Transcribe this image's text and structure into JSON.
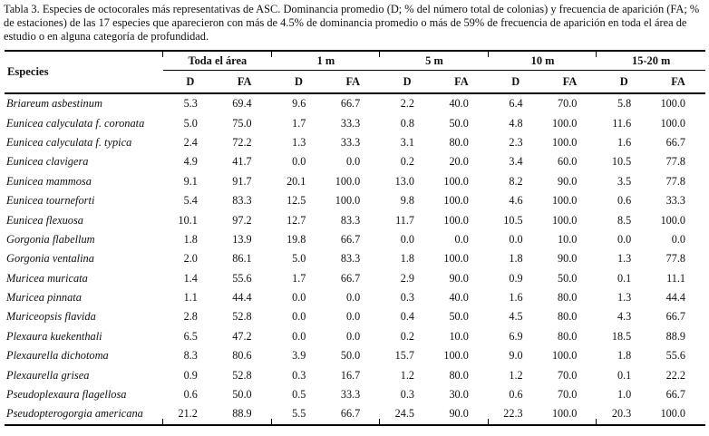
{
  "colors": {
    "text": "#111111",
    "rule": "#000000",
    "background": "#ffffff"
  },
  "caption": "Tabla 3. Especies de octocorales más representativas de ASC. Dominancia promedio (D; % del número total de colonias) y frecuencia de aparición (FA; % de estaciones) de las 17 especies que aparecieron con más de 4.5% de dominancia promedio o más de 59% de frecuencia de aparición en toda el área de estudio o en alguna categoría de profundidad.",
  "table": {
    "species_header": "Especies",
    "groups": [
      {
        "label": "Toda el área"
      },
      {
        "label": "1 m"
      },
      {
        "label": "5 m"
      },
      {
        "label": "10 m"
      },
      {
        "label": "15-20 m"
      }
    ],
    "sub_headers": [
      "D",
      "FA"
    ],
    "rows": [
      {
        "species": "Briareum asbestinum",
        "values": [
          "5.3",
          "69.4",
          "9.6",
          "66.7",
          "2.2",
          "40.0",
          "6.4",
          "70.0",
          "5.8",
          "100.0"
        ]
      },
      {
        "species": "Eunicea calyculata f. coronata",
        "values": [
          "5.0",
          "75.0",
          "1.7",
          "33.3",
          "0.8",
          "50.0",
          "4.8",
          "100.0",
          "11.6",
          "100.0"
        ]
      },
      {
        "species": "Eunicea calyculata f. typica",
        "values": [
          "2.4",
          "72.2",
          "1.3",
          "33.3",
          "3.1",
          "80.0",
          "2.3",
          "100.0",
          "1.6",
          "66.7"
        ]
      },
      {
        "species": "Eunicea clavigera",
        "values": [
          "4.9",
          "41.7",
          "0.0",
          "0.0",
          "0.2",
          "20.0",
          "3.4",
          "60.0",
          "10.5",
          "77.8"
        ]
      },
      {
        "species": "Eunicea mammosa",
        "values": [
          "9.1",
          "91.7",
          "20.1",
          "100.0",
          "13.0",
          "100.0",
          "8.2",
          "90.0",
          "3.5",
          "77.8"
        ]
      },
      {
        "species": "Eunicea tourneforti",
        "values": [
          "5.4",
          "83.3",
          "12.5",
          "100.0",
          "9.8",
          "100.0",
          "4.6",
          "100.0",
          "0.6",
          "33.3"
        ]
      },
      {
        "species": "Eunicea flexuosa",
        "values": [
          "10.1",
          "97.2",
          "12.7",
          "83.3",
          "11.7",
          "100.0",
          "10.5",
          "100.0",
          "8.5",
          "100.0"
        ]
      },
      {
        "species": "Gorgonia flabellum",
        "values": [
          "1.8",
          "13.9",
          "19.8",
          "66.7",
          "0.0",
          "0.0",
          "0.0",
          "10.0",
          "0.0",
          "0.0"
        ]
      },
      {
        "species": "Gorgonia ventalina",
        "values": [
          "2.0",
          "86.1",
          "5.0",
          "83.3",
          "1.8",
          "100.0",
          "1.8",
          "90.0",
          "1.3",
          "77.8"
        ]
      },
      {
        "species": "Muricea muricata",
        "values": [
          "1.4",
          "55.6",
          "1.7",
          "66.7",
          "2.9",
          "90.0",
          "0.9",
          "50.0",
          "0.1",
          "11.1"
        ]
      },
      {
        "species": "Muricea pinnata",
        "values": [
          "1.1",
          "44.4",
          "0.0",
          "0.0",
          "0.3",
          "40.0",
          "1.6",
          "80.0",
          "1.3",
          "44.4"
        ]
      },
      {
        "species": "Muriceopsis flavida",
        "values": [
          "2.8",
          "52.8",
          "0.0",
          "0.0",
          "0.4",
          "50.0",
          "4.5",
          "80.0",
          "4.3",
          "66.7"
        ]
      },
      {
        "species": "Plexaura kuekenthali",
        "values": [
          "6.5",
          "47.2",
          "0.0",
          "0.0",
          "0.2",
          "10.0",
          "6.9",
          "80.0",
          "18.5",
          "88.9"
        ]
      },
      {
        "species": "Plexaurella dichotoma",
        "values": [
          "8.3",
          "80.6",
          "3.9",
          "50.0",
          "15.7",
          "100.0",
          "9.0",
          "100.0",
          "1.8",
          "55.6"
        ]
      },
      {
        "species": "Plexaurella grisea",
        "values": [
          "0.9",
          "52.8",
          "0.3",
          "16.7",
          "1.2",
          "80.0",
          "1.2",
          "70.0",
          "0.1",
          "22.2"
        ]
      },
      {
        "species": "Pseudoplexaura flagellosa",
        "values": [
          "0.6",
          "50.0",
          "0.5",
          "33.3",
          "0.3",
          "30.0",
          "0.6",
          "70.0",
          "1.0",
          "66.7"
        ]
      },
      {
        "species": "Pseudopterogorgia americana",
        "values": [
          "21.2",
          "88.9",
          "5.5",
          "66.7",
          "24.5",
          "90.0",
          "22.3",
          "100.0",
          "20.3",
          "100.0"
        ]
      }
    ]
  }
}
